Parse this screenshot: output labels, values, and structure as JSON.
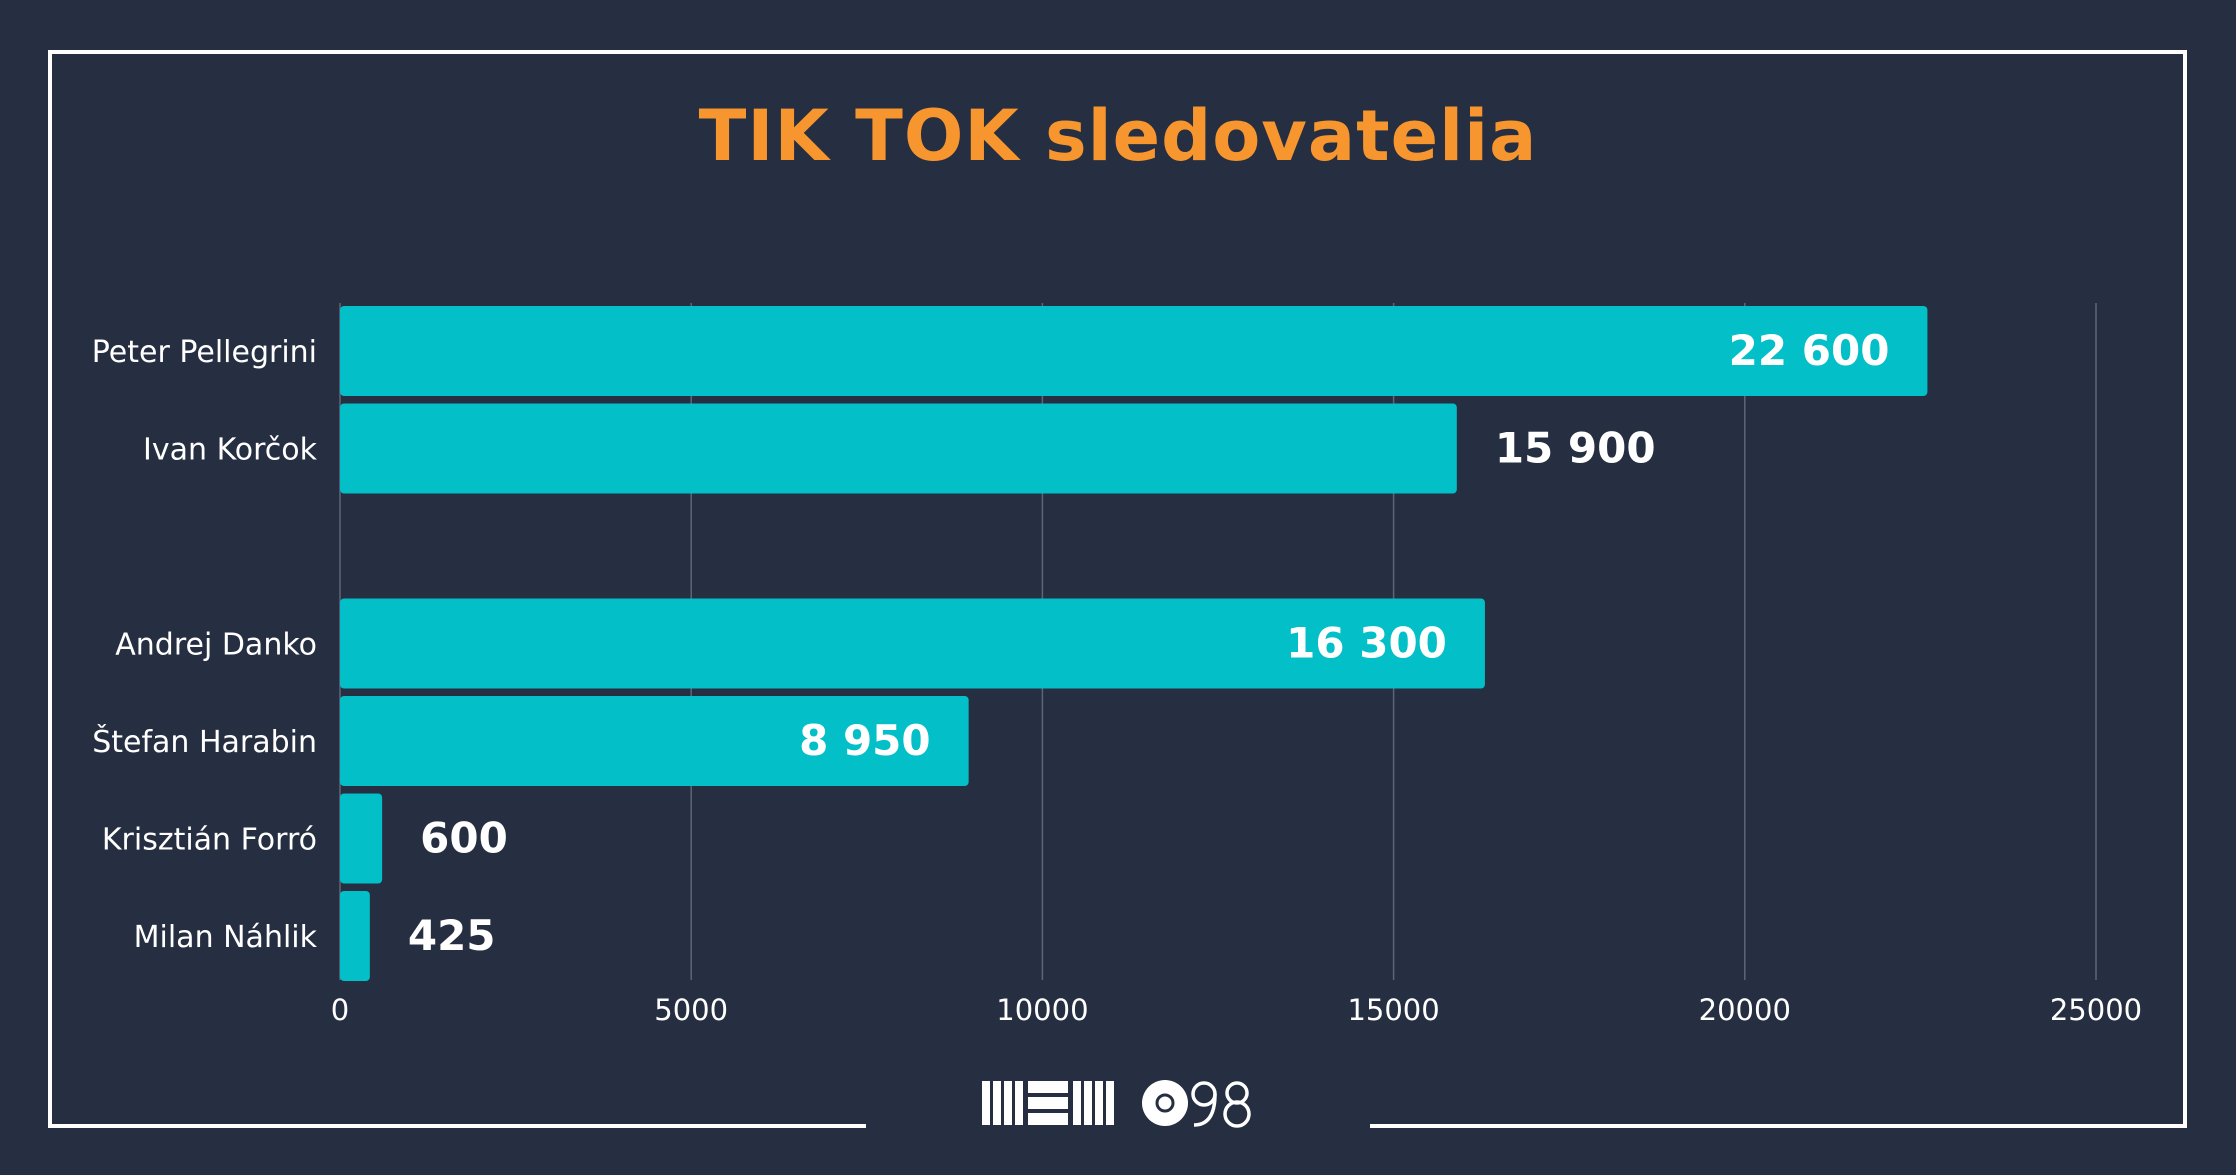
{
  "chart_data": {
    "type": "bar",
    "orientation": "horizontal",
    "title": "TIK TOK sledovatelia",
    "categories": [
      "Peter Pellegrini",
      "Ivan Korčok",
      "",
      "Andrej Danko",
      "Štefan Harabin",
      "Krisztián Forró",
      "Milan Náhlik"
    ],
    "values": [
      22600,
      15900,
      null,
      16300,
      8950,
      600,
      425
    ],
    "value_labels": [
      "22 600",
      "15 900",
      "",
      "16 300",
      "8 950",
      "600",
      "425"
    ],
    "label_inside": [
      true,
      false,
      false,
      true,
      true,
      false,
      false
    ],
    "xlim": [
      0,
      25000
    ],
    "xticks": [
      0,
      5000,
      10000,
      15000,
      20000,
      25000
    ],
    "xtick_labels": [
      "0",
      "5000",
      "10000",
      "15000",
      "20000",
      "25000"
    ],
    "xlabel": "",
    "ylabel": "",
    "grid": "vertical",
    "legend": "none"
  },
  "colors": {
    "background": "#262e41",
    "bar": "#03bfc8",
    "title": "#f7962e",
    "text": "#ffffff",
    "grid": "#5d6577"
  },
  "logo": {
    "name": "memo98-logo",
    "text": "MEMO98"
  }
}
